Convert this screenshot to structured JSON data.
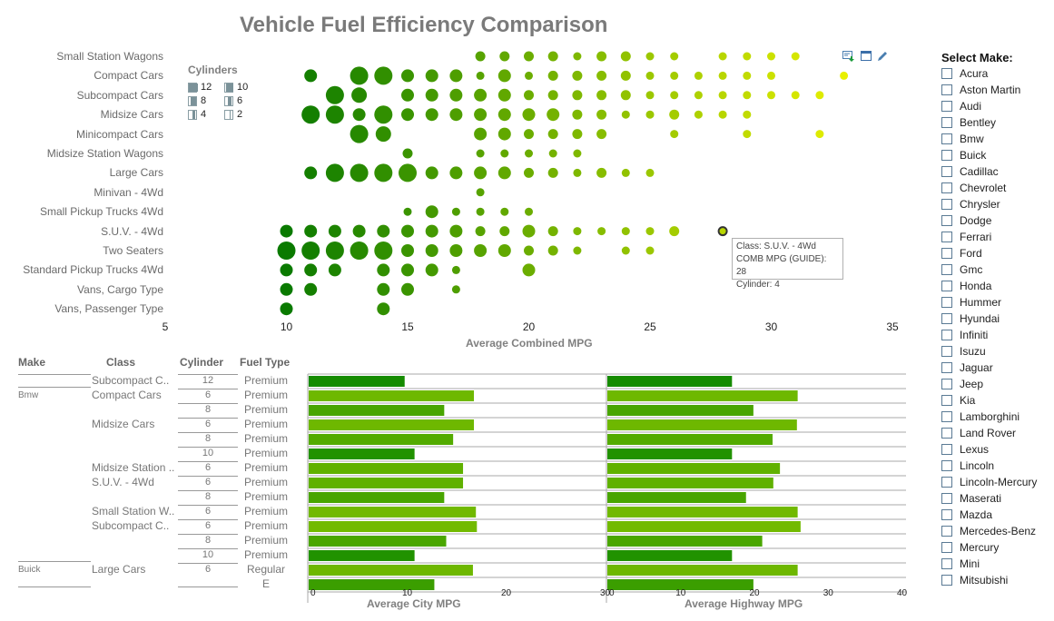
{
  "title": "Vehicle Fuel Efficiency Comparison",
  "toolbar": {
    "icons": [
      "export-icon",
      "maximize-icon",
      "edit-icon"
    ]
  },
  "legend": {
    "title": "Cylinders",
    "items": [
      {
        "label": "12",
        "fill": 1.0
      },
      {
        "label": "10",
        "fill": 0.8
      },
      {
        "label": "8",
        "fill": 0.6
      },
      {
        "label": "6",
        "fill": 0.45
      },
      {
        "label": "4",
        "fill": 0.3
      },
      {
        "label": "2",
        "fill": 0.1
      }
    ]
  },
  "chart_data": [
    {
      "type": "scatter",
      "title": "Vehicle Fuel Efficiency Comparison",
      "xlabel": "Average Combined MPG",
      "xlim": [
        5,
        35
      ],
      "xticks": [
        "5",
        "10",
        "15",
        "20",
        "25",
        "30",
        "35"
      ],
      "size_encoding": "Cylinders",
      "color_scale": [
        "#0a7a00",
        "#e8f000"
      ],
      "categories": [
        "Small Station Wagons",
        "Compact Cars",
        "Subcompact Cars",
        "Midsize Cars",
        "Minicompact Cars",
        "Midsize Station Wagons",
        "Large Cars",
        "Minivan - 4Wd",
        "Small Pickup Trucks 4Wd",
        "S.U.V. - 4Wd",
        "Two Seaters",
        "Standard Pickup Trucks 4Wd",
        "Vans, Cargo Type",
        "Vans, Passenger Type"
      ],
      "points": [
        [
          [
            18,
            6
          ],
          [
            19,
            6
          ],
          [
            20,
            6
          ],
          [
            21,
            6
          ],
          [
            22,
            4
          ],
          [
            23,
            6
          ],
          [
            24,
            6
          ],
          [
            25,
            4
          ],
          [
            26,
            4
          ],
          [
            28,
            4
          ],
          [
            29,
            4
          ],
          [
            30,
            4
          ],
          [
            31,
            4
          ]
        ],
        [
          [
            11,
            8
          ],
          [
            13,
            12
          ],
          [
            14,
            12
          ],
          [
            15,
            8
          ],
          [
            16,
            8
          ],
          [
            17,
            8
          ],
          [
            18,
            4
          ],
          [
            19,
            8
          ],
          [
            20,
            4
          ],
          [
            21,
            6
          ],
          [
            22,
            6
          ],
          [
            23,
            6
          ],
          [
            24,
            6
          ],
          [
            25,
            4
          ],
          [
            26,
            4
          ],
          [
            27,
            4
          ],
          [
            28,
            4
          ],
          [
            29,
            4
          ],
          [
            30,
            4
          ],
          [
            33,
            4
          ]
        ],
        [
          [
            12,
            12
          ],
          [
            13,
            10
          ],
          [
            15,
            8
          ],
          [
            16,
            8
          ],
          [
            17,
            8
          ],
          [
            18,
            8
          ],
          [
            19,
            8
          ],
          [
            20,
            6
          ],
          [
            21,
            6
          ],
          [
            22,
            6
          ],
          [
            23,
            6
          ],
          [
            24,
            6
          ],
          [
            25,
            4
          ],
          [
            26,
            4
          ],
          [
            27,
            4
          ],
          [
            28,
            4
          ],
          [
            29,
            4
          ],
          [
            30,
            4
          ],
          [
            31,
            4
          ],
          [
            32,
            4
          ]
        ],
        [
          [
            11,
            12
          ],
          [
            12,
            12
          ],
          [
            13,
            8
          ],
          [
            14,
            12
          ],
          [
            15,
            8
          ],
          [
            16,
            8
          ],
          [
            17,
            8
          ],
          [
            18,
            8
          ],
          [
            19,
            8
          ],
          [
            20,
            8
          ],
          [
            21,
            8
          ],
          [
            22,
            6
          ],
          [
            23,
            6
          ],
          [
            24,
            4
          ],
          [
            25,
            4
          ],
          [
            26,
            6
          ],
          [
            27,
            4
          ],
          [
            28,
            4
          ],
          [
            29,
            4
          ]
        ],
        [
          [
            13,
            12
          ],
          [
            14,
            10
          ],
          [
            18,
            8
          ],
          [
            19,
            8
          ],
          [
            20,
            6
          ],
          [
            21,
            6
          ],
          [
            22,
            6
          ],
          [
            23,
            6
          ],
          [
            26,
            4
          ],
          [
            29,
            4
          ],
          [
            32,
            4
          ]
        ],
        [
          [
            15,
            6
          ],
          [
            18,
            4
          ],
          [
            19,
            4
          ],
          [
            20,
            4
          ],
          [
            21,
            4
          ],
          [
            22,
            4
          ]
        ],
        [
          [
            11,
            8
          ],
          [
            12,
            12
          ],
          [
            13,
            12
          ],
          [
            14,
            12
          ],
          [
            15,
            12
          ],
          [
            16,
            8
          ],
          [
            17,
            8
          ],
          [
            18,
            8
          ],
          [
            19,
            8
          ],
          [
            20,
            6
          ],
          [
            21,
            6
          ],
          [
            22,
            4
          ],
          [
            23,
            6
          ],
          [
            24,
            4
          ],
          [
            25,
            4
          ]
        ],
        [
          [
            18,
            4
          ]
        ],
        [
          [
            15,
            4
          ],
          [
            16,
            8
          ],
          [
            17,
            4
          ],
          [
            18,
            4
          ],
          [
            19,
            4
          ],
          [
            20,
            4
          ]
        ],
        [
          [
            10,
            8
          ],
          [
            11,
            8
          ],
          [
            12,
            8
          ],
          [
            13,
            8
          ],
          [
            14,
            8
          ],
          [
            15,
            8
          ],
          [
            16,
            8
          ],
          [
            17,
            8
          ],
          [
            18,
            6
          ],
          [
            19,
            6
          ],
          [
            20,
            8
          ],
          [
            21,
            6
          ],
          [
            22,
            4
          ],
          [
            23,
            4
          ],
          [
            24,
            4
          ],
          [
            25,
            4
          ],
          [
            26,
            6
          ],
          [
            28,
            4
          ]
        ],
        [
          [
            10,
            12
          ],
          [
            11,
            12
          ],
          [
            12,
            12
          ],
          [
            13,
            12
          ],
          [
            14,
            12
          ],
          [
            15,
            8
          ],
          [
            16,
            8
          ],
          [
            17,
            8
          ],
          [
            18,
            8
          ],
          [
            19,
            8
          ],
          [
            20,
            6
          ],
          [
            21,
            6
          ],
          [
            22,
            4
          ],
          [
            24,
            4
          ],
          [
            25,
            4
          ]
        ],
        [
          [
            10,
            8
          ],
          [
            11,
            8
          ],
          [
            12,
            8
          ],
          [
            14,
            8
          ],
          [
            15,
            8
          ],
          [
            16,
            8
          ],
          [
            17,
            4
          ],
          [
            20,
            8
          ]
        ],
        [
          [
            10,
            8
          ],
          [
            11,
            8
          ],
          [
            14,
            8
          ],
          [
            15,
            8
          ],
          [
            17,
            4
          ]
        ],
        [
          [
            10,
            8
          ],
          [
            14,
            8
          ]
        ]
      ],
      "highlight": {
        "row": 9,
        "mpg": 28
      }
    },
    {
      "type": "bar",
      "orientation": "horizontal",
      "xlabel": "Average City MPG",
      "xlim": [
        0,
        30
      ],
      "xticks": [
        "0",
        "10",
        "20",
        "30"
      ],
      "values": [
        9.7,
        16.7,
        13.7,
        16.7,
        14.6,
        10.7,
        15.6,
        15.6,
        13.7,
        16.9,
        17.0,
        13.9,
        10.7,
        16.6,
        12.7
      ]
    },
    {
      "type": "bar",
      "orientation": "horizontal",
      "xlabel": "Average Highway MPG",
      "xlim": [
        0,
        40
      ],
      "xticks": [
        "0",
        "10",
        "20",
        "30",
        "40"
      ],
      "values": [
        16.9,
        25.8,
        19.8,
        25.7,
        22.4,
        16.9,
        23.4,
        22.5,
        18.8,
        25.8,
        26.2,
        21.0,
        16.9,
        25.8,
        19.8
      ]
    }
  ],
  "tooltip": {
    "class": "Class: S.U.V. - 4Wd",
    "mpg": "COMB MPG (GUIDE): 28",
    "cylinder": "Cylinder: 4"
  },
  "table": {
    "headers": [
      "Make",
      "Class",
      "Cylinder",
      "Fuel Type"
    ],
    "rows": [
      {
        "make": "",
        "class": "Subcompact C..",
        "cylinder": "12",
        "fuel": "Premium"
      },
      {
        "make": "Bmw",
        "class": "Compact Cars",
        "cylinder": "6",
        "fuel": "Premium"
      },
      {
        "make": "",
        "class": "",
        "cylinder": "8",
        "fuel": "Premium"
      },
      {
        "make": "",
        "class": "Midsize Cars",
        "cylinder": "6",
        "fuel": "Premium"
      },
      {
        "make": "",
        "class": "",
        "cylinder": "8",
        "fuel": "Premium"
      },
      {
        "make": "",
        "class": "",
        "cylinder": "10",
        "fuel": "Premium"
      },
      {
        "make": "",
        "class": "Midsize Station ..",
        "cylinder": "6",
        "fuel": "Premium"
      },
      {
        "make": "",
        "class": "S.U.V. - 4Wd",
        "cylinder": "6",
        "fuel": "Premium"
      },
      {
        "make": "",
        "class": "",
        "cylinder": "8",
        "fuel": "Premium"
      },
      {
        "make": "",
        "class": "Small Station W..",
        "cylinder": "6",
        "fuel": "Premium"
      },
      {
        "make": "",
        "class": "Subcompact C..",
        "cylinder": "6",
        "fuel": "Premium"
      },
      {
        "make": "",
        "class": "",
        "cylinder": "8",
        "fuel": "Premium"
      },
      {
        "make": "",
        "class": "",
        "cylinder": "10",
        "fuel": "Premium"
      },
      {
        "make": "Buick",
        "class": "Large Cars",
        "cylinder": "6",
        "fuel": "Regular"
      },
      {
        "make": "",
        "class": "",
        "cylinder": "",
        "fuel": "E"
      }
    ]
  },
  "select_make": {
    "title": "Select Make:",
    "items": [
      "Acura",
      "Aston Martin",
      "Audi",
      "Bentley",
      "Bmw",
      "Buick",
      "Cadillac",
      "Chevrolet",
      "Chrysler",
      "Dodge",
      "Ferrari",
      "Ford",
      "Gmc",
      "Honda",
      "Hummer",
      "Hyundai",
      "Infiniti",
      "Isuzu",
      "Jaguar",
      "Jeep",
      "Kia",
      "Lamborghini",
      "Land Rover",
      "Lexus",
      "Lincoln",
      "Lincoln-Mercury",
      "Maserati",
      "Mazda",
      "Mercedes-Benz",
      "Mercury",
      "Mini",
      "Mitsubishi"
    ]
  }
}
